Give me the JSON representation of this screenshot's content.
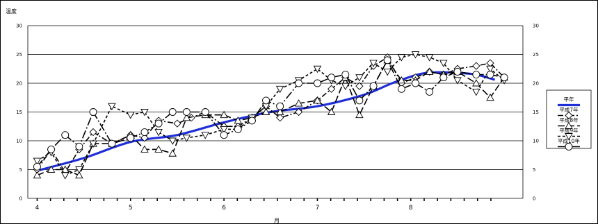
{
  "chart_data": {
    "type": "line",
    "title": "",
    "ylabel": "温度",
    "xlabel": "月",
    "ylim": [
      0,
      30
    ],
    "yticks": [
      0,
      5,
      10,
      15,
      20,
      25,
      30
    ],
    "xlim": [
      3.9,
      9.2
    ],
    "xticks": [
      4,
      5,
      6,
      7,
      8
    ],
    "grid": true,
    "legend": "right",
    "series": [
      {
        "name": "平年",
        "color": "#1f2fd8",
        "marker": "none",
        "dash": "",
        "x": [
          4.0,
          4.5,
          5.0,
          5.5,
          6.0,
          6.5,
          7.0,
          7.5,
          7.8,
          8.1,
          8.3,
          8.5,
          8.7,
          8.9
        ],
        "y": [
          4.8,
          7.0,
          9.8,
          11.0,
          13.2,
          15.0,
          16.0,
          18.0,
          20.0,
          21.6,
          21.9,
          21.8,
          21.5,
          20.6
        ]
      },
      {
        "name": "平成7年",
        "color": "#000000",
        "marker": "diamond",
        "dash": "8,3,2,3",
        "x": [
          4.0,
          4.15,
          4.3,
          4.45,
          4.6,
          4.8,
          5.0,
          5.15,
          5.3,
          5.5,
          5.65,
          5.8,
          6.0,
          6.15,
          6.3,
          6.45,
          6.6,
          6.8,
          7.0,
          7.15,
          7.3,
          7.45,
          7.6,
          7.75,
          7.9,
          8.05,
          8.2,
          8.35,
          8.5,
          8.7,
          8.85,
          9.0
        ],
        "y": [
          5.0,
          8.5,
          4.5,
          8.5,
          11.5,
          9.5,
          11.0,
          10.5,
          13.5,
          13.0,
          14.0,
          15.0,
          12.5,
          12.5,
          14.0,
          16.0,
          14.0,
          15.0,
          17.0,
          19.0,
          21.0,
          19.5,
          23.0,
          24.5,
          20.0,
          21.0,
          22.0,
          21.5,
          22.5,
          23.0,
          23.5,
          21.0
        ]
      },
      {
        "name": "平成8年",
        "color": "#000000",
        "marker": "triangle",
        "dash": "10,4",
        "x": [
          4.0,
          4.15,
          4.3,
          4.45,
          4.6,
          4.8,
          5.0,
          5.15,
          5.3,
          5.45,
          5.6,
          5.8,
          6.0,
          6.15,
          6.3,
          6.45,
          6.6,
          6.8,
          7.0,
          7.15,
          7.3,
          7.45,
          7.6,
          7.75,
          7.9,
          8.05,
          8.2,
          8.35,
          8.5,
          8.7,
          8.85,
          9.0
        ],
        "y": [
          4.0,
          5.0,
          5.0,
          4.0,
          9.5,
          9.5,
          11.0,
          8.5,
          8.5,
          7.8,
          14.0,
          14.5,
          14.5,
          13.5,
          14.0,
          15.0,
          15.0,
          16.5,
          17.0,
          15.0,
          21.0,
          14.5,
          19.5,
          24.0,
          20.5,
          20.5,
          22.0,
          21.5,
          22.0,
          20.0,
          17.5,
          21.0
        ]
      },
      {
        "name": "平成9年",
        "color": "#000000",
        "marker": "inv-triangle",
        "dash": "4,3",
        "x": [
          4.0,
          4.15,
          4.3,
          4.45,
          4.6,
          4.8,
          5.0,
          5.15,
          5.3,
          5.45,
          5.6,
          5.8,
          6.0,
          6.15,
          6.3,
          6.45,
          6.6,
          6.8,
          7.0,
          7.15,
          7.3,
          7.45,
          7.6,
          7.75,
          7.9,
          8.05,
          8.2,
          8.35,
          8.5,
          8.7,
          8.85,
          9.0
        ],
        "y": [
          6.5,
          8.0,
          4.0,
          5.0,
          9.5,
          16.0,
          14.5,
          15.0,
          11.5,
          10.0,
          10.5,
          11.0,
          12.0,
          12.0,
          14.0,
          16.0,
          19.0,
          20.5,
          22.5,
          20.5,
          19.5,
          21.0,
          23.5,
          22.0,
          24.5,
          25.0,
          24.5,
          23.5,
          20.5,
          18.5,
          22.5,
          20.5
        ]
      },
      {
        "name": "平成10年",
        "color": "#000000",
        "marker": "circle",
        "dash": "12,3,2,3",
        "x": [
          4.0,
          4.15,
          4.3,
          4.45,
          4.6,
          4.8,
          5.0,
          5.15,
          5.3,
          5.45,
          5.6,
          5.8,
          6.0,
          6.15,
          6.3,
          6.45,
          6.6,
          6.8,
          7.0,
          7.15,
          7.3,
          7.45,
          7.6,
          7.75,
          7.9,
          8.05,
          8.2,
          8.35,
          8.5,
          8.7,
          8.85,
          9.0
        ],
        "y": [
          5.5,
          8.5,
          11.0,
          9.0,
          15.0,
          9.5,
          10.5,
          11.5,
          13.0,
          15.0,
          15.0,
          15.0,
          11.0,
          12.0,
          13.5,
          17.0,
          16.0,
          20.0,
          20.0,
          21.0,
          21.5,
          17.0,
          19.5,
          24.0,
          19.0,
          20.0,
          18.5,
          21.0,
          22.0,
          21.5,
          21.5,
          21.0
        ]
      }
    ]
  }
}
